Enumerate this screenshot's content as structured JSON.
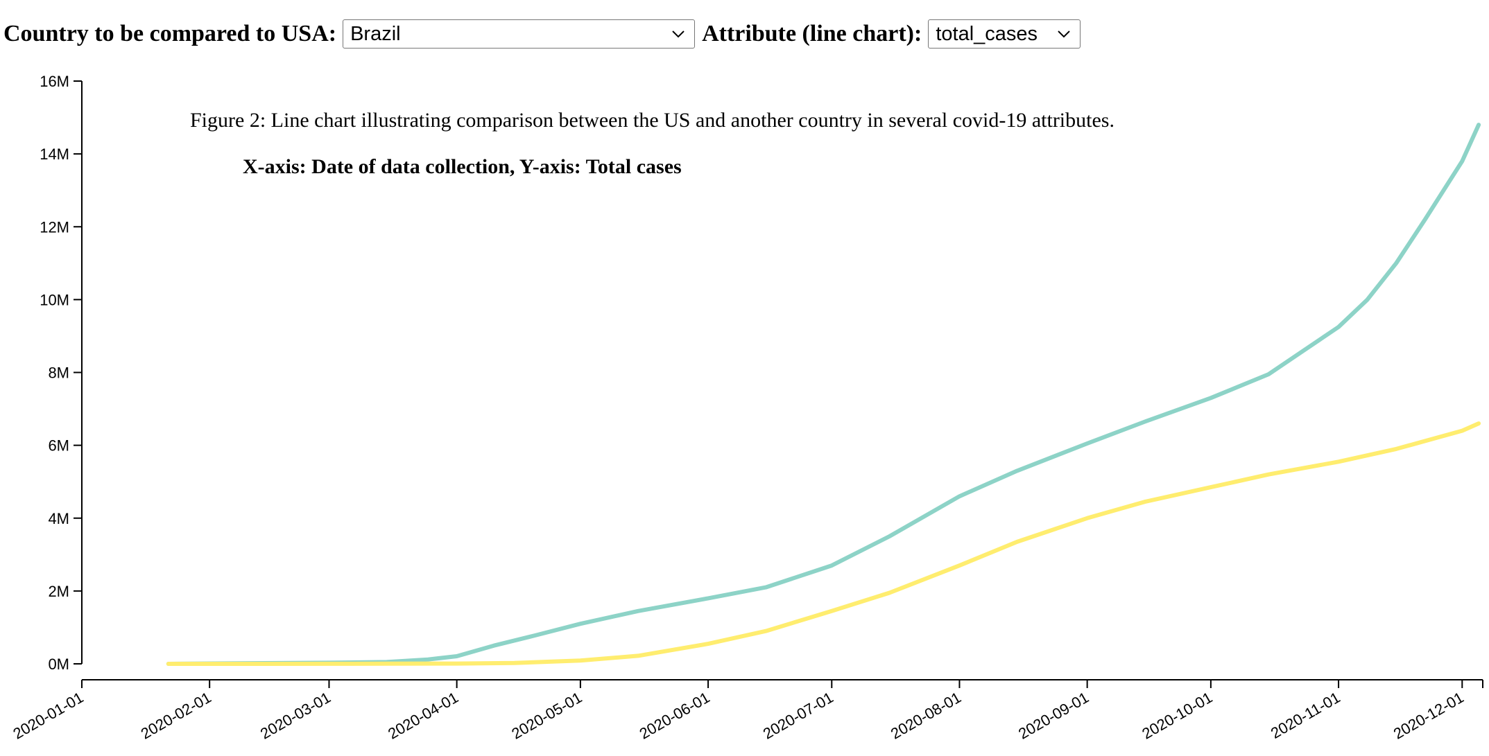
{
  "controls": {
    "country_label": "Country to be compared to USA:",
    "country_value": "Brazil",
    "attribute_label": "Attribute (line chart):",
    "attribute_value": "total_cases"
  },
  "chart_data": {
    "type": "line",
    "title": "Figure 2: Line chart illustrating comparison between the US and another country in several covid-19 attributes.",
    "subtitle": "X-axis: Date of data collection, Y-axis: Total cases",
    "xlabel": "",
    "ylabel": "",
    "x_ticks": [
      "2020-01-01",
      "2020-02-01",
      "2020-03-01",
      "2020-04-01",
      "2020-05-01",
      "2020-06-01",
      "2020-07-01",
      "2020-08-01",
      "2020-09-01",
      "2020-10-01",
      "2020-11-01",
      "2020-12-01"
    ],
    "y_ticks": [
      "0M",
      "2M",
      "4M",
      "6M",
      "8M",
      "10M",
      "12M",
      "14M",
      "16M"
    ],
    "xlim": [
      "2020-01-01",
      "2020-12-06"
    ],
    "ylim": [
      0,
      16000000
    ],
    "grid": false,
    "colors": {
      "series_1": "#8dd3c7",
      "series_2": "#ffed6f"
    },
    "series": [
      {
        "x": [
          "2020-01-22",
          "2020-03-01",
          "2020-03-15",
          "2020-03-25",
          "2020-04-01",
          "2020-04-10",
          "2020-04-20",
          "2020-05-01",
          "2020-05-15",
          "2020-06-01",
          "2020-06-15",
          "2020-07-01",
          "2020-07-15",
          "2020-08-01",
          "2020-08-15",
          "2020-09-01",
          "2020-09-15",
          "2020-10-01",
          "2020-10-15",
          "2020-11-01",
          "2020-11-08",
          "2020-11-15",
          "2020-11-22",
          "2020-12-01",
          "2020-12-05"
        ],
        "values": [
          0,
          30000,
          50000,
          120000,
          210000,
          500000,
          780000,
          1100000,
          1450000,
          1800000,
          2100000,
          2700000,
          3500000,
          4600000,
          5300000,
          6050000,
          6650000,
          7300000,
          7950000,
          9250000,
          10000000,
          11000000,
          12200000,
          13800000,
          14800000
        ]
      },
      {
        "x": [
          "2020-01-22",
          "2020-03-01",
          "2020-03-15",
          "2020-04-01",
          "2020-04-15",
          "2020-05-01",
          "2020-05-15",
          "2020-06-01",
          "2020-06-15",
          "2020-07-01",
          "2020-07-15",
          "2020-08-01",
          "2020-08-15",
          "2020-09-01",
          "2020-09-15",
          "2020-10-01",
          "2020-10-15",
          "2020-11-01",
          "2020-11-15",
          "2020-12-01",
          "2020-12-05"
        ],
        "values": [
          0,
          2000,
          5000,
          7000,
          25000,
          90000,
          220000,
          550000,
          900000,
          1450000,
          1950000,
          2700000,
          3350000,
          4000000,
          4450000,
          4850000,
          5200000,
          5550000,
          5900000,
          6400000,
          6600000
        ]
      }
    ]
  }
}
